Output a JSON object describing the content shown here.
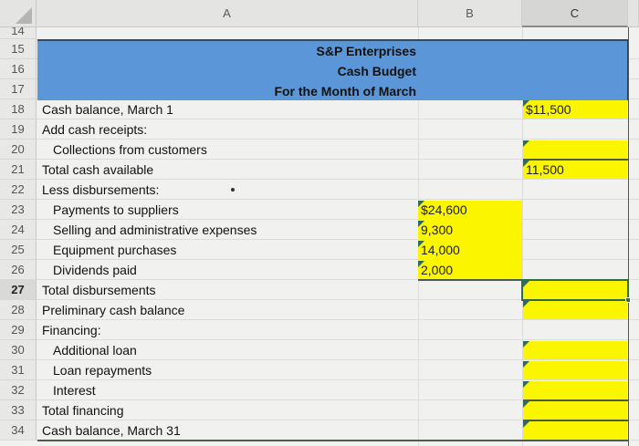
{
  "columns": [
    {
      "id": "A",
      "label": "A"
    },
    {
      "id": "B",
      "label": "B"
    },
    {
      "id": "C",
      "label": "C",
      "selected": true
    }
  ],
  "partial_row_label": "14",
  "header": {
    "company": "S&P Enterprises",
    "title": "Cash Budget",
    "period": "For the Month of March",
    "band_color": "#5b97d8"
  },
  "rows": [
    {
      "num": "15",
      "label": "",
      "indent": 0
    },
    {
      "num": "16",
      "label": "",
      "indent": 0
    },
    {
      "num": "17",
      "label": "",
      "indent": 0
    },
    {
      "num": "18",
      "label": "Cash balance, March 1",
      "indent": 0,
      "c": "$11,500"
    },
    {
      "num": "19",
      "label": "Add cash receipts:",
      "indent": 0
    },
    {
      "num": "20",
      "label": "Collections from customers",
      "indent": 1,
      "c": ""
    },
    {
      "num": "21",
      "label": "Total cash available",
      "indent": 0,
      "c": "11,500"
    },
    {
      "num": "22",
      "label": "Less disbursements:",
      "indent": 0
    },
    {
      "num": "23",
      "label": "Payments to suppliers",
      "indent": 1,
      "b": "$24,600"
    },
    {
      "num": "24",
      "label": "Selling and administrative expenses",
      "indent": 1,
      "b": "9,300"
    },
    {
      "num": "25",
      "label": "Equipment purchases",
      "indent": 1,
      "b": "14,000"
    },
    {
      "num": "26",
      "label": "Dividends paid",
      "indent": 1,
      "b": "2,000"
    },
    {
      "num": "27",
      "label": "Total disbursements",
      "indent": 0,
      "c": "",
      "active": true
    },
    {
      "num": "28",
      "label": "Preliminary cash balance",
      "indent": 0,
      "c": ""
    },
    {
      "num": "29",
      "label": "Financing:",
      "indent": 0
    },
    {
      "num": "30",
      "label": "Additional loan",
      "indent": 1,
      "c": ""
    },
    {
      "num": "31",
      "label": "Loan repayments",
      "indent": 1,
      "c": ""
    },
    {
      "num": "32",
      "label": "Interest",
      "indent": 1,
      "c": ""
    },
    {
      "num": "33",
      "label": "Total financing",
      "indent": 0,
      "c": ""
    },
    {
      "num": "34",
      "label": "Cash balance, March 31",
      "indent": 0,
      "c": ""
    }
  ],
  "colors": {
    "input_fill": "#fbf500",
    "error_tick": "#2e6b5a",
    "active_border": "#2e6b4a"
  }
}
